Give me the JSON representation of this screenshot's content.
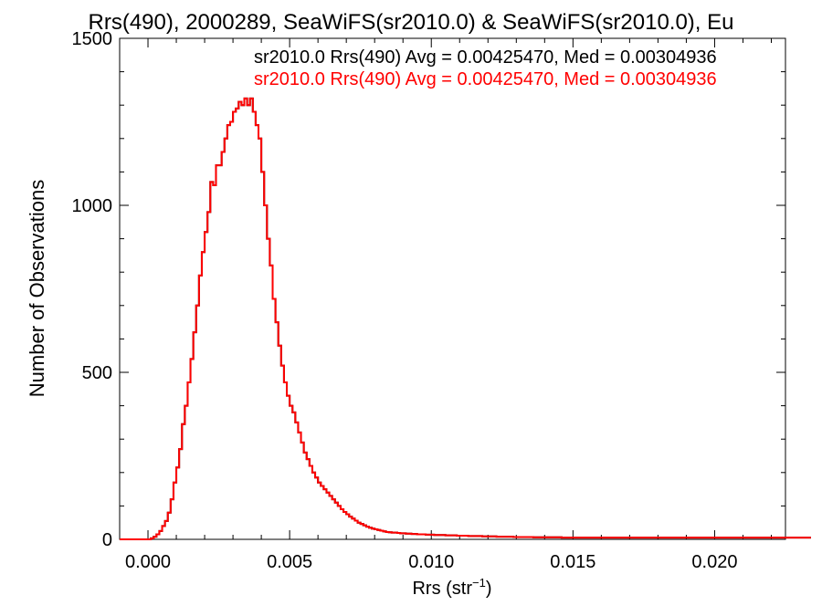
{
  "chart_data": {
    "type": "line",
    "step": true,
    "title": "Rrs(490), 2000289, SeaWiFS(sr2010.0) & SeaWiFS(sr2010.0), Eu",
    "xlabel_main": "Rrs (str",
    "xlabel_sup": "−1",
    "xlabel_close": ")",
    "ylabel": "Number of Observations",
    "xlim": [
      -0.001,
      0.0225
    ],
    "ylim": [
      0,
      1500
    ],
    "xticks": [
      0.0,
      0.005,
      0.01,
      0.015,
      0.02
    ],
    "xtick_labels": [
      "0.000",
      "0.005",
      "0.010",
      "0.015",
      "0.020"
    ],
    "yticks": [
      0,
      500,
      1000,
      1500
    ],
    "ytick_labels": [
      "0",
      "500",
      "1000",
      "1500"
    ],
    "bin_start": -0.001,
    "bin_width": 0.0001,
    "series": [
      {
        "name": "sr2010.0 Rrs(490) Avg = 0.00425470, Med = 0.00304936",
        "color": "#000000",
        "values": [
          0,
          0,
          0,
          0,
          0,
          0,
          0,
          0,
          0,
          0,
          0,
          3,
          8,
          15,
          25,
          40,
          55,
          80,
          120,
          170,
          215,
          270,
          345,
          400,
          470,
          540,
          620,
          700,
          790,
          860,
          920,
          980,
          1070,
          1060,
          1120,
          1120,
          1160,
          1200,
          1240,
          1250,
          1280,
          1290,
          1310,
          1300,
          1320,
          1300,
          1320,
          1280,
          1240,
          1200,
          1100,
          1000,
          900,
          820,
          720,
          650,
          580,
          520,
          470,
          430,
          400,
          380,
          350,
          320,
          290,
          260,
          240,
          220,
          200,
          185,
          170,
          160,
          150,
          140,
          130,
          120,
          110,
          100,
          90,
          82,
          75,
          68,
          62,
          56,
          50,
          46,
          42,
          38,
          35,
          32,
          30,
          28,
          26,
          24,
          22,
          21,
          20,
          20,
          19,
          18,
          18,
          17,
          17,
          16,
          16,
          15,
          15,
          15,
          14,
          14,
          14,
          13,
          13,
          13,
          13,
          12,
          12,
          12,
          12,
          11,
          11,
          11,
          11,
          10,
          10,
          10,
          10,
          10,
          9,
          9,
          9,
          9,
          9,
          8,
          8,
          8,
          8,
          8,
          8,
          7,
          7,
          7,
          7,
          7,
          7,
          7,
          6,
          6,
          6,
          6,
          6,
          6,
          6,
          6,
          6,
          6,
          5,
          5,
          5,
          5,
          5,
          5,
          5,
          5,
          5,
          5,
          5,
          5,
          5,
          5,
          5,
          5,
          5,
          5,
          5,
          5,
          5,
          5,
          5,
          5,
          5,
          5,
          5,
          5,
          5,
          5,
          5,
          5,
          5,
          5,
          5,
          5,
          5,
          5,
          5,
          5,
          5,
          5,
          5,
          5,
          5,
          5,
          5,
          5,
          5,
          5,
          5,
          5,
          5,
          5,
          5,
          5,
          5,
          5,
          5,
          5,
          5,
          5,
          5,
          5,
          5,
          5,
          5,
          5,
          5,
          5,
          5,
          5,
          5,
          5,
          5,
          5,
          5,
          5,
          5,
          5,
          5,
          5,
          5,
          5,
          5,
          5,
          5,
          5,
          5
        ]
      },
      {
        "name": "sr2010.0 Rrs(490) Avg = 0.00425470, Med = 0.00304936",
        "color": "#ff0000",
        "values": [
          0,
          0,
          0,
          0,
          0,
          0,
          0,
          0,
          0,
          0,
          0,
          3,
          8,
          15,
          25,
          40,
          55,
          80,
          120,
          170,
          215,
          270,
          345,
          400,
          470,
          540,
          620,
          700,
          790,
          860,
          920,
          980,
          1070,
          1060,
          1120,
          1120,
          1160,
          1200,
          1240,
          1250,
          1280,
          1290,
          1310,
          1300,
          1320,
          1300,
          1320,
          1280,
          1240,
          1200,
          1100,
          1000,
          900,
          820,
          720,
          650,
          580,
          520,
          470,
          430,
          400,
          380,
          350,
          320,
          290,
          260,
          240,
          220,
          200,
          185,
          170,
          160,
          150,
          140,
          130,
          120,
          110,
          100,
          90,
          82,
          75,
          68,
          62,
          56,
          50,
          46,
          42,
          38,
          35,
          32,
          30,
          28,
          26,
          24,
          22,
          21,
          20,
          20,
          19,
          18,
          18,
          17,
          17,
          16,
          16,
          15,
          15,
          15,
          14,
          14,
          14,
          13,
          13,
          13,
          13,
          12,
          12,
          12,
          12,
          11,
          11,
          11,
          11,
          10,
          10,
          10,
          10,
          10,
          9,
          9,
          9,
          9,
          9,
          8,
          8,
          8,
          8,
          8,
          8,
          7,
          7,
          7,
          7,
          7,
          7,
          7,
          6,
          6,
          6,
          6,
          6,
          6,
          6,
          6,
          6,
          6,
          5,
          5,
          5,
          5,
          5,
          5,
          5,
          5,
          5,
          5,
          5,
          5,
          5,
          5,
          5,
          5,
          5,
          5,
          5,
          5,
          5,
          5,
          5,
          5,
          5,
          5,
          5,
          5,
          5,
          5,
          5,
          5,
          5,
          5,
          5,
          5,
          5,
          5,
          5,
          5,
          5,
          5,
          5,
          5,
          5,
          5,
          5,
          5,
          5,
          5,
          5,
          5,
          5,
          5,
          5,
          5,
          5,
          5,
          5,
          5,
          5,
          5,
          5,
          5,
          5,
          5,
          5,
          5,
          5,
          5,
          5,
          5,
          5,
          5,
          5,
          5,
          5,
          5,
          5,
          5,
          5,
          5,
          5,
          5,
          5,
          5,
          5,
          5,
          5
        ]
      }
    ]
  }
}
